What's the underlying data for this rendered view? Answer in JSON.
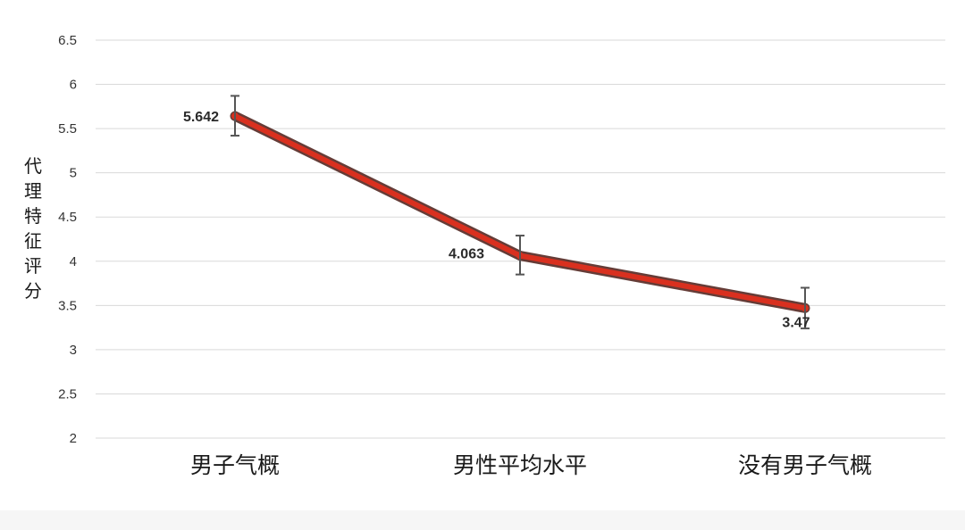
{
  "chart_data": {
    "type": "line",
    "categories": [
      "男子气概",
      "男性平均水平",
      "没有男子气概"
    ],
    "series": [
      {
        "values": [
          5.642,
          4.063,
          3.47
        ],
        "data_labels": [
          "5.642",
          "4.063",
          "3.47"
        ],
        "error_bars": [
          {
            "low": 5.42,
            "high": 5.87
          },
          {
            "low": 3.85,
            "high": 4.29
          },
          {
            "low": 3.24,
            "high": 3.7
          }
        ]
      }
    ],
    "ylabel": "代理特征评分",
    "xlabel": "",
    "title": "",
    "ylim": [
      2,
      6.5
    ],
    "yticks": [
      "2",
      "2.5",
      "3",
      "3.5",
      "4",
      "4.5",
      "5",
      "5.5",
      "6",
      "6.5"
    ],
    "grid": true,
    "legend": "none",
    "colors": {
      "line": "#d9301f",
      "line_shadow": "#4a1a14",
      "grid": "#d9d9d9",
      "error_bar": "#555555"
    }
  }
}
